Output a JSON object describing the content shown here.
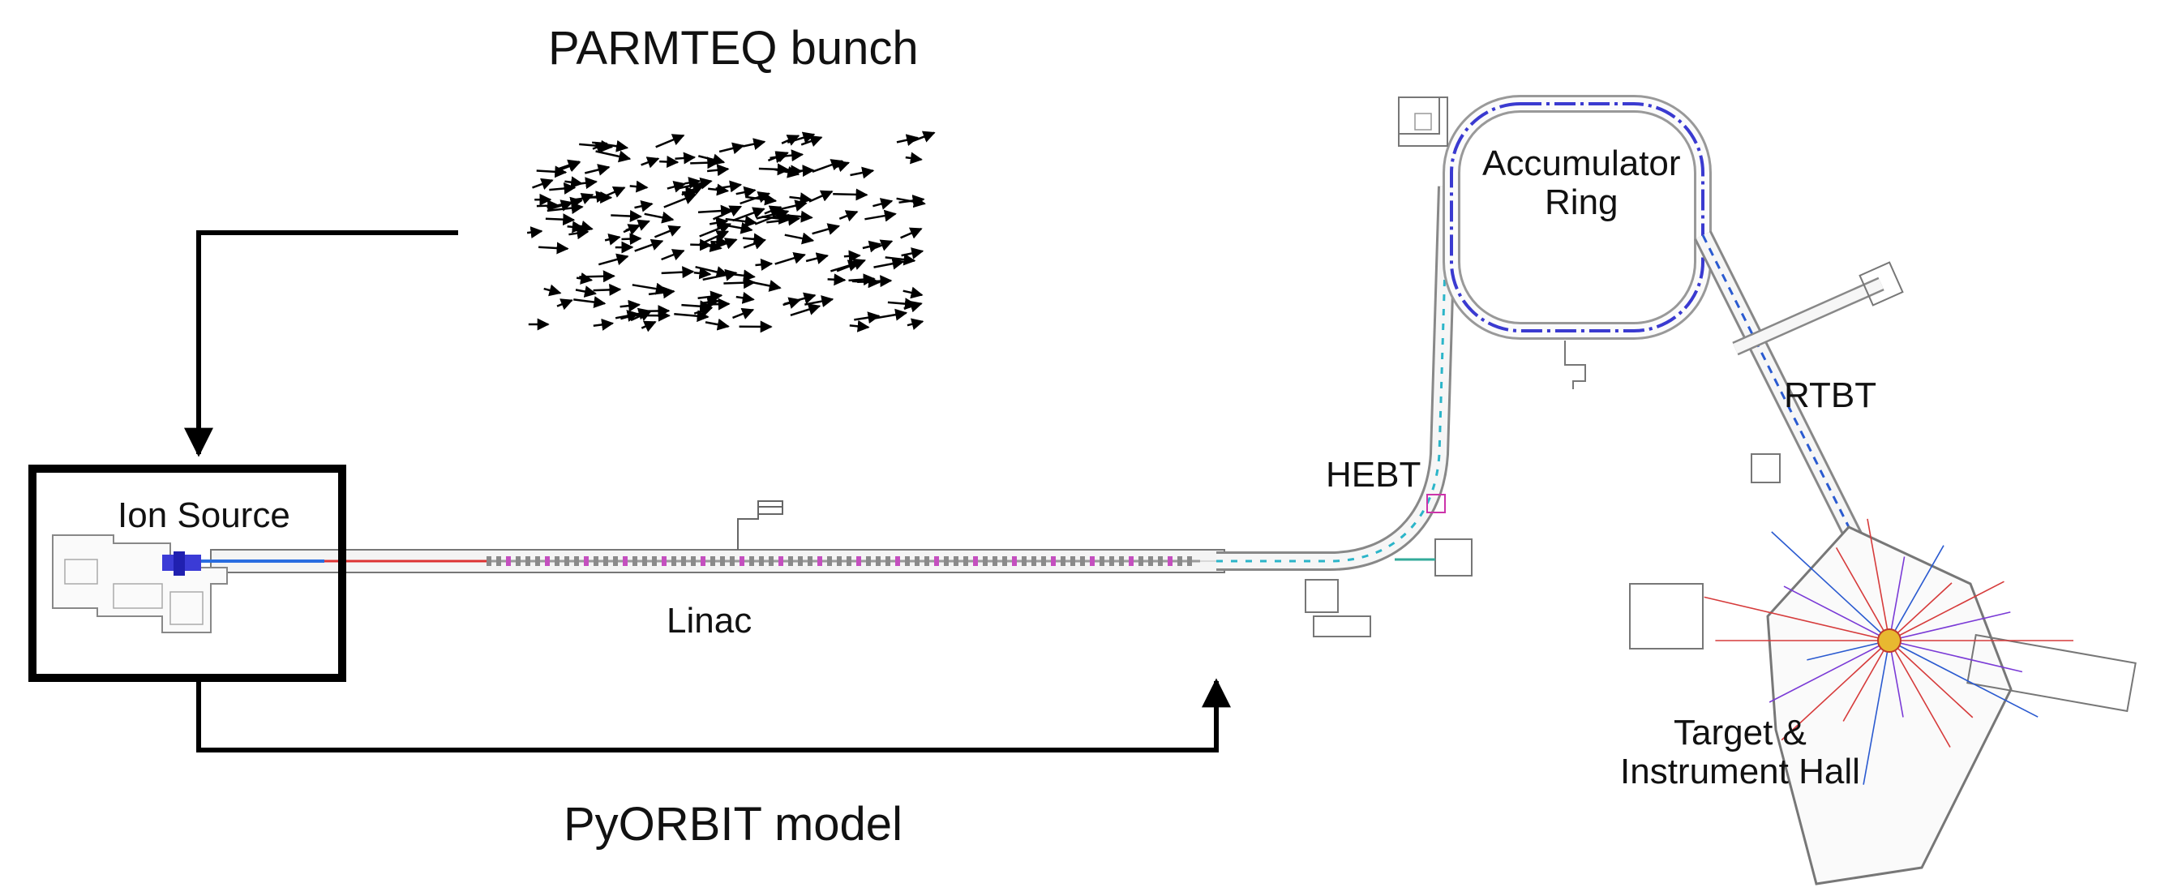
{
  "diagram": {
    "top_label": "PARMTEQ bunch",
    "bottom_label": "PyORBIT model",
    "labels": {
      "ion_source": "Ion Source",
      "linac": "Linac",
      "hebt": "HEBT",
      "ring_line1": "Accumulator",
      "ring_line2": "Ring",
      "rtbt": "RTBT",
      "target_line1": "Target &",
      "target_line2": "Instrument Hall"
    }
  }
}
